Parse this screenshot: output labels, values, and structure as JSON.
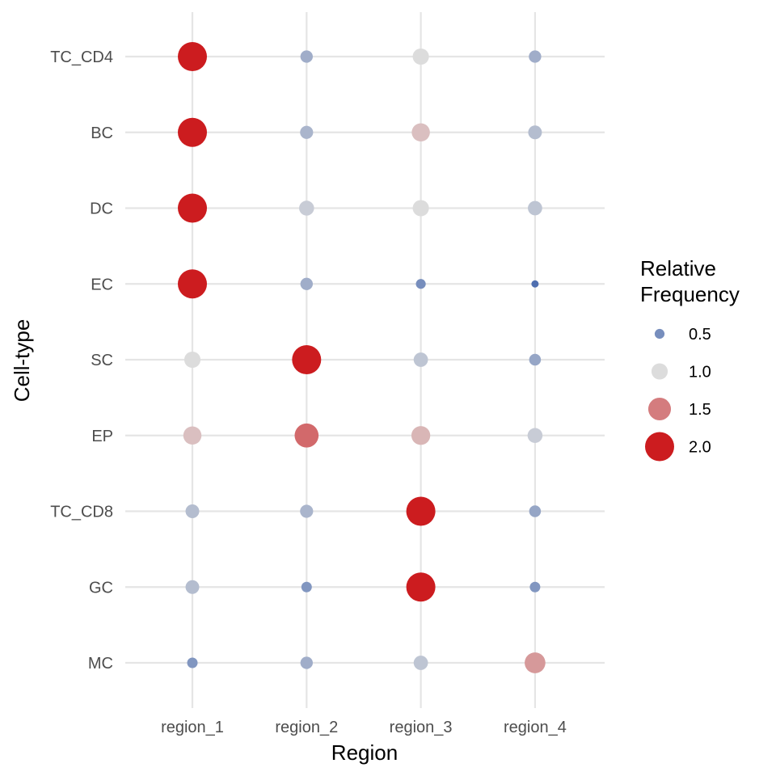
{
  "chart_data": {
    "type": "scatter",
    "xlabel": "Region",
    "ylabel": "Cell-type",
    "x_categories": [
      "region_1",
      "region_2",
      "region_3",
      "region_4"
    ],
    "y_categories": [
      "TC_CD4",
      "BC",
      "DC",
      "EC",
      "SC",
      "EP",
      "TC_CD8",
      "GC",
      "MC"
    ],
    "grid": true,
    "legend": {
      "title_lines": [
        "Relative",
        "Frequency"
      ],
      "placement": "right",
      "entries": [
        {
          "label": "0.5",
          "value": 0.5
        },
        {
          "label": "1.0",
          "value": 1.0
        },
        {
          "label": "1.5",
          "value": 1.5
        },
        {
          "label": "2.0",
          "value": 2.0
        }
      ]
    },
    "color_scale": {
      "low": "#4f6fb0",
      "mid": "#dcdcdc",
      "high": "#cc1c1f",
      "min": 0.3,
      "mid_value": 1.0,
      "max": 2.0
    },
    "points": [
      {
        "x": "region_1",
        "y": "TC_CD4",
        "value": 2.0
      },
      {
        "x": "region_2",
        "y": "TC_CD4",
        "value": 0.7
      },
      {
        "x": "region_3",
        "y": "TC_CD4",
        "value": 1.0
      },
      {
        "x": "region_4",
        "y": "TC_CD4",
        "value": 0.7
      },
      {
        "x": "region_1",
        "y": "BC",
        "value": 2.0
      },
      {
        "x": "region_2",
        "y": "BC",
        "value": 0.75
      },
      {
        "x": "region_3",
        "y": "BC",
        "value": 1.15
      },
      {
        "x": "region_4",
        "y": "BC",
        "value": 0.8
      },
      {
        "x": "region_1",
        "y": "DC",
        "value": 2.0
      },
      {
        "x": "region_2",
        "y": "DC",
        "value": 0.9
      },
      {
        "x": "region_3",
        "y": "DC",
        "value": 1.0
      },
      {
        "x": "region_4",
        "y": "DC",
        "value": 0.85
      },
      {
        "x": "region_1",
        "y": "EC",
        "value": 2.0
      },
      {
        "x": "region_2",
        "y": "EC",
        "value": 0.7
      },
      {
        "x": "region_3",
        "y": "EC",
        "value": 0.5
      },
      {
        "x": "region_4",
        "y": "EC",
        "value": 0.3
      },
      {
        "x": "region_1",
        "y": "SC",
        "value": 1.0
      },
      {
        "x": "region_2",
        "y": "SC",
        "value": 2.0
      },
      {
        "x": "region_3",
        "y": "SC",
        "value": 0.85
      },
      {
        "x": "region_4",
        "y": "SC",
        "value": 0.65
      },
      {
        "x": "region_1",
        "y": "EP",
        "value": 1.15
      },
      {
        "x": "region_2",
        "y": "EP",
        "value": 1.6
      },
      {
        "x": "region_3",
        "y": "EP",
        "value": 1.2
      },
      {
        "x": "region_4",
        "y": "EP",
        "value": 0.9
      },
      {
        "x": "region_1",
        "y": "TC_CD8",
        "value": 0.8
      },
      {
        "x": "region_2",
        "y": "TC_CD8",
        "value": 0.75
      },
      {
        "x": "region_3",
        "y": "TC_CD8",
        "value": 2.0
      },
      {
        "x": "region_4",
        "y": "TC_CD8",
        "value": 0.65
      },
      {
        "x": "region_1",
        "y": "GC",
        "value": 0.8
      },
      {
        "x": "region_2",
        "y": "GC",
        "value": 0.55
      },
      {
        "x": "region_3",
        "y": "GC",
        "value": 2.0
      },
      {
        "x": "region_4",
        "y": "GC",
        "value": 0.55
      },
      {
        "x": "region_1",
        "y": "MC",
        "value": 0.55
      },
      {
        "x": "region_2",
        "y": "MC",
        "value": 0.7
      },
      {
        "x": "region_3",
        "y": "MC",
        "value": 0.85
      },
      {
        "x": "region_4",
        "y": "MC",
        "value": 1.35
      }
    ]
  }
}
